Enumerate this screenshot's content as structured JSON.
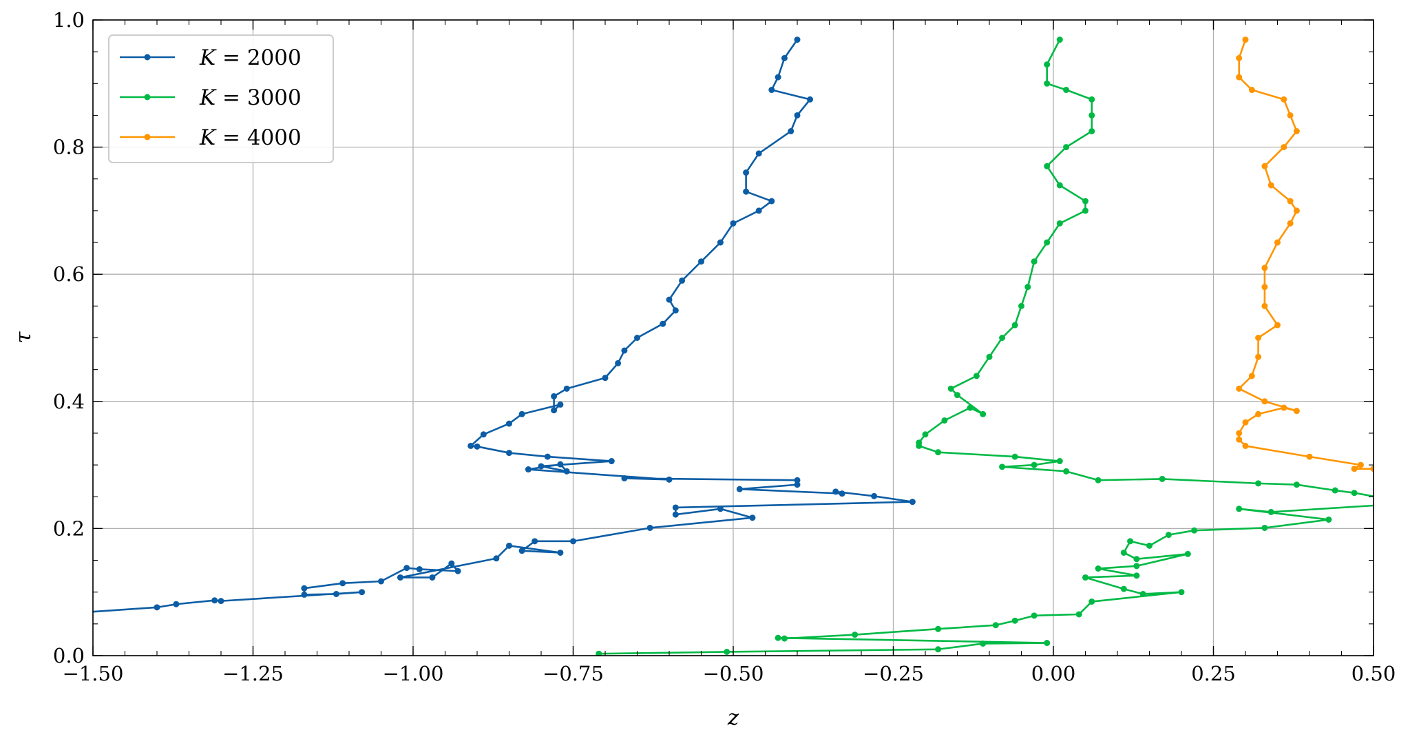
{
  "chart_data": {
    "type": "line",
    "xlabel": "z",
    "ylabel": "τ",
    "xlim": [
      -1.5,
      0.5
    ],
    "ylim": [
      0.0,
      1.0
    ],
    "xticks": [
      "−1.50",
      "−1.25",
      "−1.00",
      "−0.75",
      "−0.50",
      "−0.25",
      "0.00",
      "0.25",
      "0.50"
    ],
    "yticks": [
      "0.0",
      "0.2",
      "0.4",
      "0.6",
      "0.8",
      "1.0"
    ],
    "grid": true,
    "legend_position": "top-left",
    "markers": true,
    "series": [
      {
        "name": "K = 2000",
        "label_var": "K",
        "label_val": "2000",
        "color": "#0C5DA5",
        "points": [
          [
            -1.56,
            0.065
          ],
          [
            -1.4,
            0.076
          ],
          [
            -1.37,
            0.081
          ],
          [
            -1.31,
            0.087
          ],
          [
            -1.3,
            0.086
          ],
          [
            -1.08,
            0.1
          ],
          [
            -1.12,
            0.097
          ],
          [
            -1.17,
            0.096
          ],
          [
            -1.17,
            0.106
          ],
          [
            -1.11,
            0.114
          ],
          [
            -1.05,
            0.117
          ],
          [
            -1.01,
            0.138
          ],
          [
            -0.99,
            0.136
          ],
          [
            -0.93,
            0.133
          ],
          [
            -0.94,
            0.145
          ],
          [
            -0.97,
            0.123
          ],
          [
            -1.02,
            0.123
          ],
          [
            -0.87,
            0.153
          ],
          [
            -0.85,
            0.173
          ],
          [
            -0.77,
            0.162
          ],
          [
            -0.83,
            0.165
          ],
          [
            -0.81,
            0.18
          ],
          [
            -0.75,
            0.18
          ],
          [
            -0.63,
            0.201
          ],
          [
            -0.47,
            0.217
          ],
          [
            -0.52,
            0.231
          ],
          [
            -0.59,
            0.222
          ],
          [
            -0.59,
            0.233
          ],
          [
            -0.22,
            0.242
          ],
          [
            -0.28,
            0.251
          ],
          [
            -0.34,
            0.258
          ],
          [
            -0.33,
            0.255
          ],
          [
            -0.49,
            0.262
          ],
          [
            -0.4,
            0.269
          ],
          [
            -0.4,
            0.276
          ],
          [
            -0.67,
            0.279
          ],
          [
            -0.6,
            0.277
          ],
          [
            -0.82,
            0.293
          ],
          [
            -0.77,
            0.301
          ],
          [
            -0.76,
            0.29
          ],
          [
            -0.8,
            0.298
          ],
          [
            -0.69,
            0.306
          ],
          [
            -0.79,
            0.313
          ],
          [
            -0.85,
            0.319
          ],
          [
            -0.9,
            0.329
          ],
          [
            -0.91,
            0.33
          ],
          [
            -0.89,
            0.348
          ],
          [
            -0.85,
            0.365
          ],
          [
            -0.83,
            0.38
          ],
          [
            -0.77,
            0.395
          ],
          [
            -0.78,
            0.386
          ],
          [
            -0.78,
            0.408
          ],
          [
            -0.76,
            0.42
          ],
          [
            -0.7,
            0.437
          ],
          [
            -0.68,
            0.46
          ],
          [
            -0.67,
            0.48
          ],
          [
            -0.65,
            0.5
          ],
          [
            -0.61,
            0.522
          ],
          [
            -0.59,
            0.543
          ],
          [
            -0.6,
            0.56
          ],
          [
            -0.58,
            0.59
          ],
          [
            -0.55,
            0.62
          ],
          [
            -0.52,
            0.65
          ],
          [
            -0.5,
            0.68
          ],
          [
            -0.46,
            0.7
          ],
          [
            -0.44,
            0.715
          ],
          [
            -0.48,
            0.73
          ],
          [
            -0.48,
            0.76
          ],
          [
            -0.46,
            0.79
          ],
          [
            -0.41,
            0.825
          ],
          [
            -0.4,
            0.85
          ],
          [
            -0.38,
            0.875
          ],
          [
            -0.44,
            0.89
          ],
          [
            -0.43,
            0.91
          ],
          [
            -0.42,
            0.94
          ],
          [
            -0.4,
            0.969
          ]
        ]
      },
      {
        "name": "K = 3000",
        "label_var": "K",
        "label_val": "3000",
        "color": "#00B945",
        "points": [
          [
            -0.71,
            0.003
          ],
          [
            -0.51,
            0.006
          ],
          [
            -0.18,
            0.01
          ],
          [
            -0.11,
            0.019
          ],
          [
            -0.01,
            0.02
          ],
          [
            -0.43,
            0.028
          ],
          [
            -0.42,
            0.027
          ],
          [
            -0.31,
            0.033
          ],
          [
            -0.18,
            0.042
          ],
          [
            -0.09,
            0.048
          ],
          [
            -0.06,
            0.055
          ],
          [
            -0.03,
            0.063
          ],
          [
            0.04,
            0.065
          ],
          [
            0.06,
            0.085
          ],
          [
            0.2,
            0.1
          ],
          [
            0.14,
            0.097
          ],
          [
            0.11,
            0.105
          ],
          [
            0.05,
            0.123
          ],
          [
            0.13,
            0.126
          ],
          [
            0.07,
            0.137
          ],
          [
            0.13,
            0.141
          ],
          [
            0.21,
            0.16
          ],
          [
            0.13,
            0.152
          ],
          [
            0.11,
            0.162
          ],
          [
            0.12,
            0.18
          ],
          [
            0.15,
            0.173
          ],
          [
            0.18,
            0.19
          ],
          [
            0.22,
            0.197
          ],
          [
            0.33,
            0.201
          ],
          [
            0.43,
            0.214
          ],
          [
            0.29,
            0.231
          ],
          [
            0.34,
            0.226
          ],
          [
            0.56,
            0.24
          ],
          [
            0.51,
            0.249
          ],
          [
            0.47,
            0.256
          ],
          [
            0.44,
            0.26
          ],
          [
            0.38,
            0.269
          ],
          [
            0.32,
            0.271
          ],
          [
            0.17,
            0.278
          ],
          [
            0.07,
            0.276
          ],
          [
            0.02,
            0.29
          ],
          [
            -0.08,
            0.297
          ],
          [
            -0.03,
            0.3
          ],
          [
            0.01,
            0.306
          ],
          [
            -0.06,
            0.313
          ],
          [
            -0.18,
            0.32
          ],
          [
            -0.21,
            0.33
          ],
          [
            -0.21,
            0.335
          ],
          [
            -0.2,
            0.348
          ],
          [
            -0.17,
            0.37
          ],
          [
            -0.13,
            0.39
          ],
          [
            -0.11,
            0.38
          ],
          [
            -0.15,
            0.41
          ],
          [
            -0.16,
            0.42
          ],
          [
            -0.12,
            0.44
          ],
          [
            -0.1,
            0.47
          ],
          [
            -0.08,
            0.5
          ],
          [
            -0.06,
            0.52
          ],
          [
            -0.05,
            0.55
          ],
          [
            -0.04,
            0.58
          ],
          [
            -0.03,
            0.62
          ],
          [
            -0.01,
            0.65
          ],
          [
            0.01,
            0.68
          ],
          [
            0.05,
            0.7
          ],
          [
            0.05,
            0.715
          ],
          [
            0.01,
            0.74
          ],
          [
            -0.01,
            0.77
          ],
          [
            0.02,
            0.8
          ],
          [
            0.06,
            0.825
          ],
          [
            0.06,
            0.85
          ],
          [
            0.06,
            0.875
          ],
          [
            0.02,
            0.89
          ],
          [
            -0.01,
            0.9
          ],
          [
            -0.01,
            0.93
          ],
          [
            0.01,
            0.969
          ]
        ]
      },
      {
        "name": "K = 4000",
        "label_var": "K",
        "label_val": "4000",
        "color": "#FF9500",
        "points": [
          [
            0.56,
            0.312
          ],
          [
            0.5,
            0.294
          ],
          [
            0.47,
            0.294
          ],
          [
            0.48,
            0.3
          ],
          [
            0.4,
            0.313
          ],
          [
            0.3,
            0.33
          ],
          [
            0.29,
            0.34
          ],
          [
            0.29,
            0.35
          ],
          [
            0.3,
            0.367
          ],
          [
            0.32,
            0.38
          ],
          [
            0.36,
            0.39
          ],
          [
            0.38,
            0.385
          ],
          [
            0.33,
            0.4
          ],
          [
            0.29,
            0.42
          ],
          [
            0.31,
            0.44
          ],
          [
            0.32,
            0.47
          ],
          [
            0.32,
            0.5
          ],
          [
            0.35,
            0.52
          ],
          [
            0.33,
            0.55
          ],
          [
            0.33,
            0.58
          ],
          [
            0.33,
            0.61
          ],
          [
            0.35,
            0.65
          ],
          [
            0.37,
            0.68
          ],
          [
            0.38,
            0.7
          ],
          [
            0.37,
            0.715
          ],
          [
            0.34,
            0.74
          ],
          [
            0.33,
            0.77
          ],
          [
            0.36,
            0.8
          ],
          [
            0.38,
            0.825
          ],
          [
            0.37,
            0.85
          ],
          [
            0.36,
            0.875
          ],
          [
            0.31,
            0.89
          ],
          [
            0.29,
            0.91
          ],
          [
            0.29,
            0.94
          ],
          [
            0.3,
            0.969
          ]
        ]
      }
    ]
  }
}
